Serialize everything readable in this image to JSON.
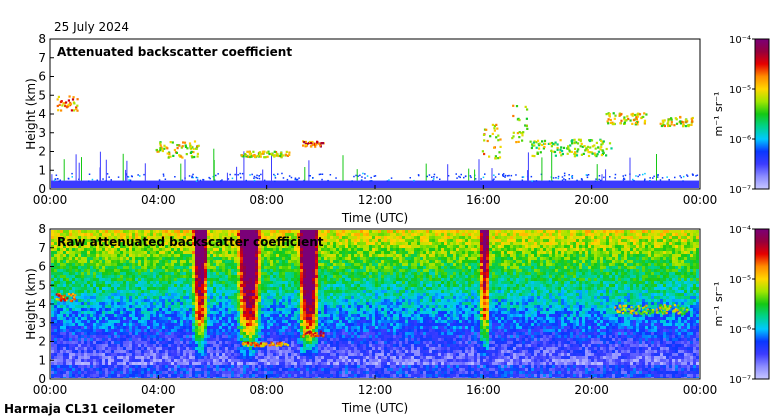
{
  "date": "25 July 2024",
  "footer": "Harmaja CL31 ceilometer",
  "colors": {
    "scale": [
      "#c8c8ff",
      "#8c8cff",
      "#3c3cff",
      "#0a37ff",
      "#00c8ff",
      "#00d28c",
      "#14c814",
      "#a0e600",
      "#ffd700",
      "#ff8c00",
      "#e60000",
      "#96003c",
      "#7a0078"
    ],
    "surface_band": "#3a3aff",
    "background": "#ffffff"
  },
  "chart_data": [
    {
      "type": "heatmap",
      "title": "Attenuated backscatter coefficient",
      "xlabel": "Time (UTC)",
      "ylabel": "Height (km)",
      "x_ticks": [
        "00:00",
        "04:00",
        "08:00",
        "12:00",
        "16:00",
        "20:00",
        "00:00"
      ],
      "x_range_hours": [
        0,
        24
      ],
      "y_ticks": [
        0,
        1,
        2,
        3,
        4,
        5,
        6,
        7,
        8
      ],
      "ylim": [
        0,
        8
      ],
      "colorbar": {
        "label": "m⁻¹ sr⁻¹",
        "ticks": [
          "10⁻⁷",
          "10⁻⁶",
          "10⁻⁵",
          "10⁻⁴"
        ],
        "range_log10": [
          -7,
          -4
        ]
      },
      "features": [
        {
          "type": "cloud_layer",
          "start_h": 0.2,
          "end_h": 1.0,
          "base_km": 4.2,
          "top_km": 5.0,
          "log10_value": -5.0
        },
        {
          "type": "cloud_layer",
          "start_h": 3.9,
          "end_h": 5.5,
          "base_km": 1.7,
          "top_km": 2.6,
          "log10_value": -5.3
        },
        {
          "type": "cloud_layer",
          "start_h": 7.0,
          "end_h": 8.8,
          "base_km": 1.75,
          "top_km": 2.05,
          "log10_value": -5.3
        },
        {
          "type": "cloud_layer",
          "start_h": 9.3,
          "end_h": 10.1,
          "base_km": 2.3,
          "top_km": 2.6,
          "log10_value": -4.8
        },
        {
          "type": "cloud_layer",
          "start_h": 15.9,
          "end_h": 16.6,
          "base_km": 1.6,
          "top_km": 3.5,
          "log10_value": -5.2
        },
        {
          "type": "cloud_layer",
          "start_h": 17.0,
          "end_h": 17.6,
          "base_km": 2.5,
          "top_km": 4.5,
          "log10_value": -5.3
        },
        {
          "type": "cloud_layer",
          "start_h": 17.7,
          "end_h": 20.7,
          "base_km": 1.8,
          "top_km": 2.7,
          "log10_value": -5.5
        },
        {
          "type": "cloud_layer",
          "start_h": 20.5,
          "end_h": 22.0,
          "base_km": 3.5,
          "top_km": 4.1,
          "log10_value": -5.3
        },
        {
          "type": "cloud_layer",
          "start_h": 22.5,
          "end_h": 23.7,
          "base_km": 3.4,
          "top_km": 3.9,
          "log10_value": -5.3
        }
      ]
    },
    {
      "type": "heatmap",
      "title": "Raw attenuated backscatter coefficient",
      "xlabel": "Time (UTC)",
      "ylabel": "Height (km)",
      "x_ticks": [
        "00:00",
        "04:00",
        "08:00",
        "12:00",
        "16:00",
        "20:00",
        "00:00"
      ],
      "x_range_hours": [
        0,
        24
      ],
      "y_ticks": [
        0,
        1,
        2,
        3,
        4,
        5,
        6,
        7,
        8
      ],
      "ylim": [
        0,
        8
      ],
      "colorbar": {
        "label": "m⁻¹ sr⁻¹",
        "ticks": [
          "10⁻⁷",
          "10⁻⁶",
          "10⁻⁵",
          "10⁻⁴"
        ],
        "range_log10": [
          -7,
          -4
        ]
      },
      "features": [
        {
          "type": "noise_plume",
          "center_h": 5.5,
          "width_h": 0.6,
          "log10_value": -4.6
        },
        {
          "type": "noise_plume",
          "center_h": 7.3,
          "width_h": 0.9,
          "log10_value": -4.4
        },
        {
          "type": "noise_plume",
          "center_h": 9.5,
          "width_h": 0.8,
          "log10_value": -4.3
        },
        {
          "type": "noise_plume",
          "center_h": 16.0,
          "width_h": 0.4,
          "log10_value": -4.8
        },
        {
          "type": "cloud_layer",
          "start_h": 0.2,
          "end_h": 0.9,
          "base_km": 4.2,
          "top_km": 4.6,
          "log10_value": -5.0
        },
        {
          "type": "cloud_layer",
          "start_h": 7.0,
          "end_h": 8.8,
          "base_km": 1.8,
          "top_km": 2.0,
          "log10_value": -5.0
        },
        {
          "type": "cloud_layer",
          "start_h": 9.3,
          "end_h": 10.1,
          "base_km": 2.3,
          "top_km": 2.6,
          "log10_value": -4.6
        },
        {
          "type": "cloud_layer",
          "start_h": 20.8,
          "end_h": 23.5,
          "base_km": 3.5,
          "top_km": 4.0,
          "log10_value": -5.4
        }
      ]
    }
  ]
}
